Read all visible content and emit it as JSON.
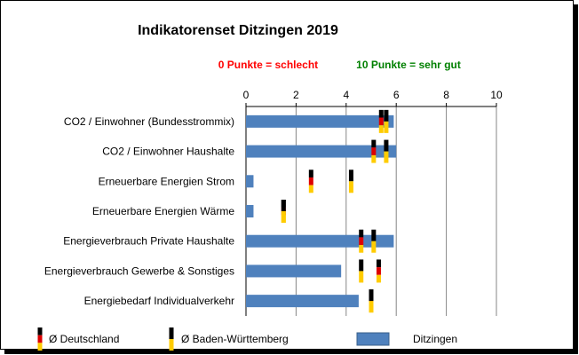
{
  "chart_data": {
    "type": "bar",
    "title": "Indikatorenset Ditzingen 2019",
    "annotations": {
      "bad": "0 Punkte = schlecht",
      "good": "10 Punkte = sehr gut"
    },
    "xlim": [
      0,
      10
    ],
    "xticks": [
      "0",
      "2",
      "4",
      "6",
      "8",
      "10"
    ],
    "categories": [
      "CO2 / Einwohner (Bundesstrommix)",
      "CO2 / Einwohner Haushalte",
      "Erneuerbare Energien Strom",
      "Erneuerbare Energien Wärme",
      "Energieverbrauch Private Haushalte",
      "Energieverbrauch Gewerbe & Sonstiges",
      "Energiebedarf Individualverkehr"
    ],
    "series": [
      {
        "name": "Ditzingen",
        "values": [
          5.9,
          6.0,
          0.3,
          0.3,
          5.9,
          3.8,
          4.5
        ]
      },
      {
        "name": "Ø Deutschland",
        "values": [
          5.4,
          5.1,
          2.6,
          1.5,
          4.6,
          5.3,
          5.0
        ]
      },
      {
        "name": "Ø Baden-Württemberg",
        "values": [
          5.6,
          5.6,
          4.2,
          1.5,
          5.1,
          4.6,
          5.0
        ]
      }
    ],
    "colors": {
      "bar": "#4f81bd",
      "good": "#008000",
      "bad": "#ff0000"
    },
    "legend": [
      "Ø Deutschland",
      "Ø Baden-Württemberg",
      "Ditzingen"
    ],
    "grid": "vertical"
  }
}
